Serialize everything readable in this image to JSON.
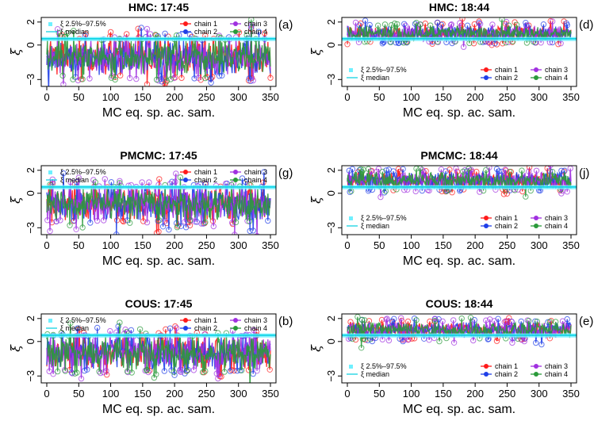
{
  "colors": {
    "chain_1": "#ff1a1a",
    "chain_2": "#1f3fe8",
    "chain_3": "#a030e0",
    "chain_4": "#2a9a3a",
    "band": "#6ff0ff",
    "median": "#00cfe0",
    "axis": "#000000"
  },
  "shared": {
    "xlabel": "MC eq. sp. ac. sam.",
    "ylabel": "ξ",
    "band_legend": "ξ 2.5%–97.5%",
    "median_legend": "ξ median",
    "chains": [
      "chain 1",
      "chain 2",
      "chain 3",
      "chain 4"
    ]
  },
  "chart_data": [
    {
      "type": "line",
      "panel_label": "(a)",
      "title": "HMC: 17:45",
      "xlabel": "MC eq. sp. ac. sam.",
      "ylabel": "ξ",
      "xlim": [
        0,
        350
      ],
      "ylim": [
        -3.6,
        2.4
      ],
      "xticks": [
        0,
        50,
        100,
        150,
        200,
        250,
        300,
        350
      ],
      "yticks": [
        -3,
        0,
        2
      ],
      "legend_position": "top",
      "series": [
        {
          "name": "chain 1",
          "mean": -1.1,
          "sd": 0.85
        },
        {
          "name": "chain 2",
          "mean": -1.1,
          "sd": 0.85
        },
        {
          "name": "chain 3",
          "mean": -1.1,
          "sd": 0.85
        },
        {
          "name": "chain 4",
          "mean": -1.1,
          "sd": 0.85
        }
      ],
      "band": [
        0.35,
        0.7
      ],
      "median": 0.55
    },
    {
      "type": "line",
      "panel_label": "(d)",
      "title": "HMC: 18:44",
      "xlabel": "MC eq. sp. ac. sam.",
      "ylabel": "ξ",
      "xlim": [
        0,
        350
      ],
      "ylim": [
        -3.6,
        2.4
      ],
      "xticks": [
        0,
        50,
        100,
        150,
        200,
        250,
        300,
        350
      ],
      "yticks": [
        -3,
        0,
        2
      ],
      "legend_position": "bottom",
      "series": [
        {
          "name": "chain 1",
          "mean": 1.0,
          "sd": 0.38
        },
        {
          "name": "chain 2",
          "mean": 1.0,
          "sd": 0.38
        },
        {
          "name": "chain 3",
          "mean": 1.0,
          "sd": 0.38
        },
        {
          "name": "chain 4",
          "mean": 1.0,
          "sd": 0.38
        }
      ],
      "band": [
        0.35,
        0.7
      ],
      "median": 0.55
    },
    {
      "type": "line",
      "panel_label": "(g)",
      "title": "PMCMC: 17:45",
      "xlabel": "MC eq. sp. ac. sam.",
      "ylabel": "ξ",
      "xlim": [
        0,
        350
      ],
      "ylim": [
        -3.6,
        2.4
      ],
      "xticks": [
        0,
        50,
        100,
        150,
        200,
        250,
        300,
        350
      ],
      "yticks": [
        -3,
        0,
        2
      ],
      "legend_position": "top",
      "series": [
        {
          "name": "chain 1",
          "mean": -0.9,
          "sd": 0.8
        },
        {
          "name": "chain 2",
          "mean": -0.9,
          "sd": 0.8
        },
        {
          "name": "chain 3",
          "mean": -0.9,
          "sd": 0.8
        },
        {
          "name": "chain 4",
          "mean": -0.9,
          "sd": 0.8
        }
      ],
      "band": [
        0.35,
        0.7
      ],
      "median": 0.55
    },
    {
      "type": "line",
      "panel_label": "(j)",
      "title": "PMCMC: 18:44",
      "xlabel": "MC eq. sp. ac. sam.",
      "ylabel": "ξ",
      "xlim": [
        0,
        350
      ],
      "ylim": [
        -3.6,
        2.4
      ],
      "xticks": [
        0,
        50,
        100,
        150,
        200,
        250,
        300,
        350
      ],
      "yticks": [
        -3,
        0,
        2
      ],
      "legend_position": "bottom",
      "series": [
        {
          "name": "chain 1",
          "mean": 1.1,
          "sd": 0.42
        },
        {
          "name": "chain 2",
          "mean": 1.1,
          "sd": 0.42
        },
        {
          "name": "chain 3",
          "mean": 1.1,
          "sd": 0.42
        },
        {
          "name": "chain 4",
          "mean": 1.1,
          "sd": 0.42
        }
      ],
      "band": [
        0.35,
        0.7
      ],
      "median": 0.55
    },
    {
      "type": "line",
      "panel_label": "(b)",
      "title": "COUS: 17:45",
      "xlabel": "MC eq. sp. ac. sam.",
      "ylabel": "ξ",
      "xlim": [
        0,
        350
      ],
      "ylim": [
        -3.6,
        2.4
      ],
      "xticks": [
        0,
        50,
        100,
        150,
        200,
        250,
        300,
        350
      ],
      "yticks": [
        -3,
        0,
        2
      ],
      "legend_position": "top",
      "series": [
        {
          "name": "chain 1",
          "mean": -1.0,
          "sd": 0.8
        },
        {
          "name": "chain 2",
          "mean": -1.0,
          "sd": 0.8
        },
        {
          "name": "chain 3",
          "mean": -1.0,
          "sd": 0.8
        },
        {
          "name": "chain 4",
          "mean": -1.0,
          "sd": 0.8
        }
      ],
      "band": [
        0.35,
        0.7
      ],
      "median": 0.55
    },
    {
      "type": "line",
      "panel_label": "(e)",
      "title": "COUS: 18:44",
      "xlabel": "MC eq. sp. ac. sam.",
      "ylabel": "ξ",
      "xlim": [
        0,
        350
      ],
      "ylim": [
        -3.6,
        2.4
      ],
      "xticks": [
        0,
        50,
        100,
        150,
        200,
        250,
        300,
        350
      ],
      "yticks": [
        -3,
        0,
        2
      ],
      "legend_position": "bottom",
      "series": [
        {
          "name": "chain 1",
          "mean": 1.0,
          "sd": 0.38
        },
        {
          "name": "chain 2",
          "mean": 1.0,
          "sd": 0.38
        },
        {
          "name": "chain 3",
          "mean": 1.0,
          "sd": 0.38
        },
        {
          "name": "chain 4",
          "mean": 1.0,
          "sd": 0.38
        }
      ],
      "band": [
        0.35,
        0.7
      ],
      "median": 0.55
    }
  ]
}
